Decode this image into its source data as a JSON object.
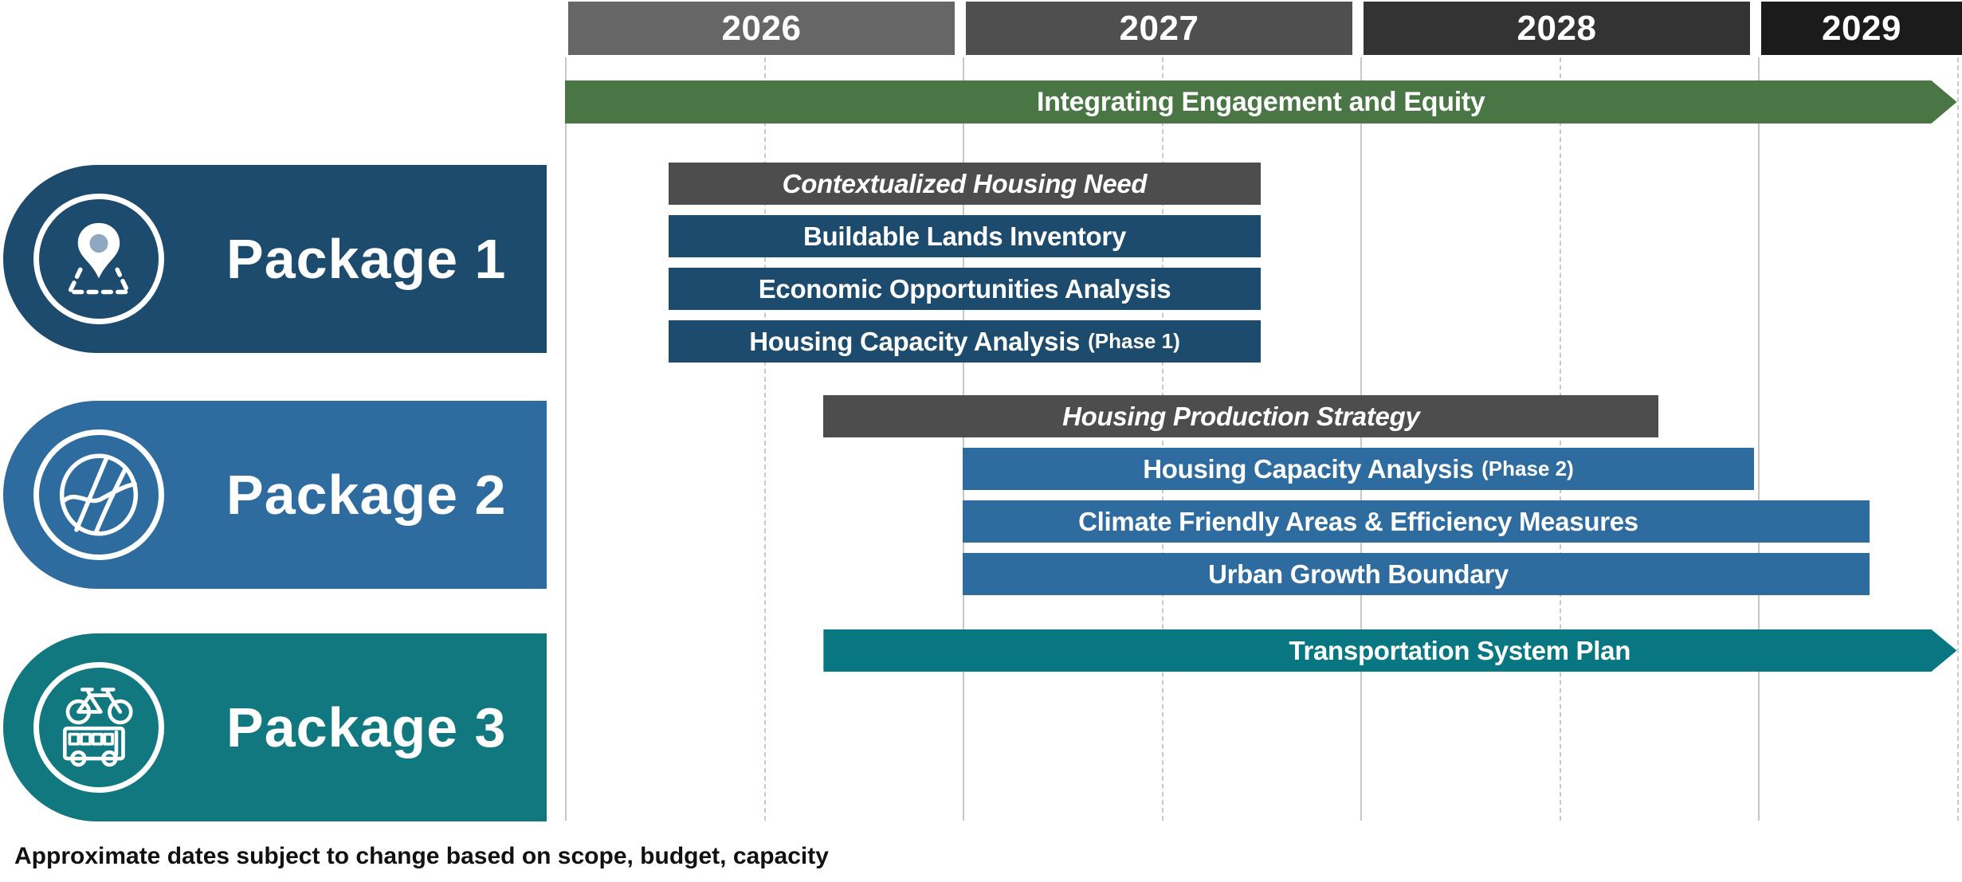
{
  "chart_data": {
    "type": "gantt",
    "title": "",
    "x_axis": {
      "unit": "year",
      "range": [
        2026,
        2029.5
      ],
      "ticks": [
        "2026",
        "2027",
        "2028",
        "2029"
      ],
      "grid": "solid lines at year starts, dashed lines at mid-year"
    },
    "years": [
      {
        "label": "2026",
        "color": "#666666"
      },
      {
        "label": "2027",
        "color": "#4f4f4f"
      },
      {
        "label": "2028",
        "color": "#333333"
      },
      {
        "label": "2029",
        "color": "#1b1b1b"
      }
    ],
    "banner": {
      "label": "Integrating Engagement and Equity",
      "start": 2026.0,
      "end": 2029.5,
      "arrow": true,
      "color": "#4a7544",
      "text_color": "#ffffff"
    },
    "groups": [
      {
        "label": "Package 1",
        "color": "#1d4b6e",
        "icon": "map-pin-route-icon",
        "tasks": [
          {
            "label": "Contextualized Housing Need",
            "start": 2026.26,
            "end": 2027.75,
            "color": "#4d4d4d",
            "italic": true
          },
          {
            "label": "Buildable Lands Inventory",
            "start": 2026.26,
            "end": 2027.75,
            "color": "#1d4b6e"
          },
          {
            "label": "Economic Opportunities Analysis",
            "start": 2026.26,
            "end": 2027.75,
            "color": "#1d4b6e"
          },
          {
            "label": "Housing Capacity Analysis",
            "suffix": "(Phase 1)",
            "start": 2026.26,
            "end": 2027.75,
            "color": "#1d4b6e"
          }
        ]
      },
      {
        "label": "Package 2",
        "color": "#2e6b9e",
        "icon": "globe-map-icon",
        "tasks": [
          {
            "label": "Housing Production Strategy",
            "start": 2026.65,
            "end": 2028.75,
            "color": "#4d4d4d",
            "italic": true
          },
          {
            "label": "Housing Capacity Analysis",
            "suffix": "(Phase 2)",
            "start": 2027.0,
            "end": 2028.99,
            "color": "#2e6b9e"
          },
          {
            "label": "Climate Friendly Areas & Efficiency Measures",
            "start": 2027.0,
            "end": 2029.28,
            "color": "#2e6b9e",
            "text_end": 2028.99
          },
          {
            "label": "Urban Growth Boundary",
            "start": 2027.0,
            "end": 2029.28,
            "color": "#2e6b9e",
            "text_end": 2028.99
          }
        ]
      },
      {
        "label": "Package 3",
        "color": "#12787f",
        "icon": "bike-bus-icon",
        "tasks": [
          {
            "label": "Transportation System Plan",
            "start": 2026.65,
            "end": 2029.5,
            "arrow": true,
            "color": "#087782",
            "text_start": 2027.0
          }
        ]
      }
    ],
    "footnote": "Approximate dates subject to change based on scope, budget, capacity"
  }
}
